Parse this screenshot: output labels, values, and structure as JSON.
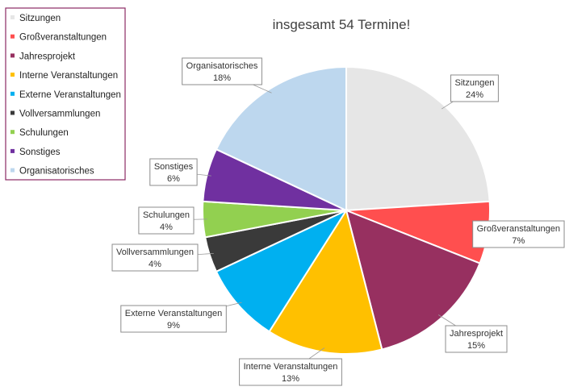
{
  "chart_data": {
    "type": "pie",
    "title": "insgesamt 54 Termine!",
    "legend_position": "top-left",
    "categories": [
      "Sitzungen",
      "Großveranstaltungen",
      "Jahresprojekt",
      "Interne Veranstaltungen",
      "Externe Veranstaltungen",
      "Vollversammlungen",
      "Schulungen",
      "Sonstiges",
      "Organisatorisches"
    ],
    "values": [
      24,
      7,
      15,
      13,
      9,
      4,
      4,
      6,
      18
    ],
    "labels": [
      "24%",
      "7%",
      "15%",
      "13%",
      "9%",
      "4%",
      "4%",
      "6%",
      "18%"
    ],
    "colors": [
      "#e6e6e6",
      "#ff4f4f",
      "#973060",
      "#ffc000",
      "#00b0f0",
      "#3a3a3a",
      "#92d050",
      "#7030a0",
      "#bdd7ee"
    ]
  }
}
